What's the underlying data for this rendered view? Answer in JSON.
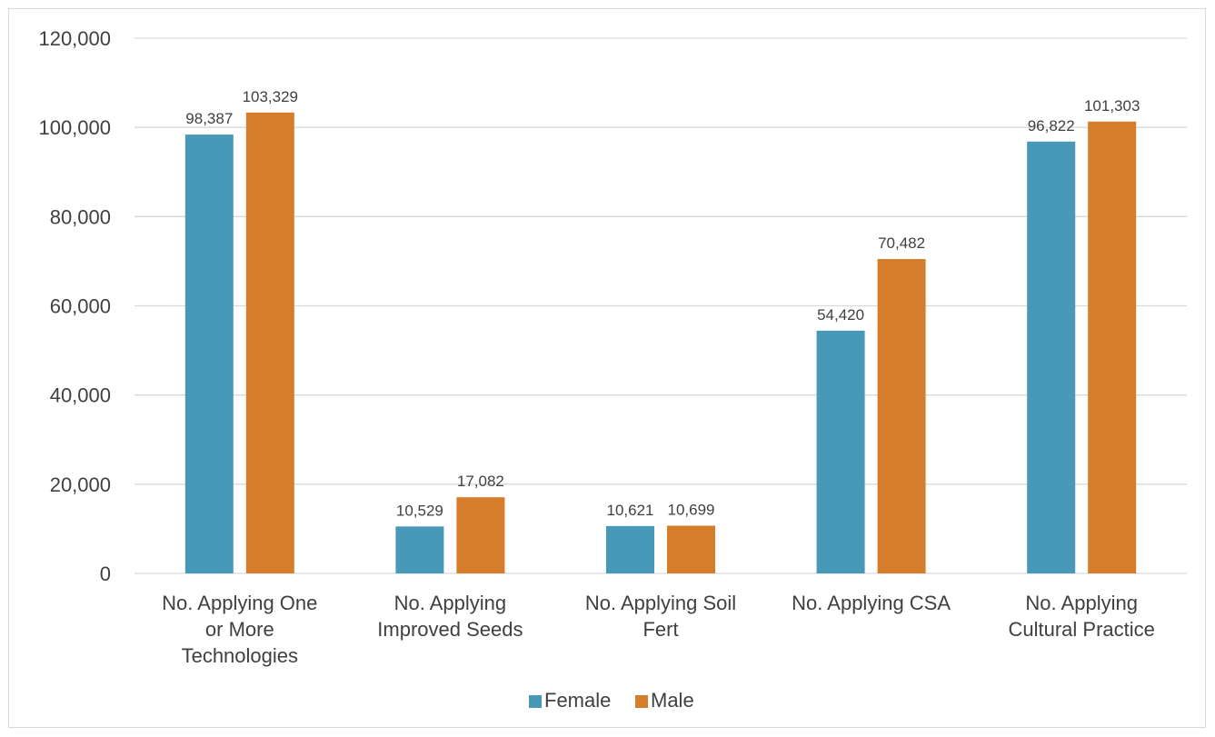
{
  "chart_data": {
    "type": "bar",
    "title": "",
    "xlabel": "",
    "ylabel": "",
    "ylim": [
      0,
      120000
    ],
    "yticks": [
      0,
      20000,
      40000,
      60000,
      80000,
      100000,
      120000
    ],
    "ytick_labels": [
      "0",
      "20,000",
      "40,000",
      "60,000",
      "80,000",
      "100,000",
      "120,000"
    ],
    "grid": true,
    "legend_position": "bottom",
    "categories": [
      [
        "No. Applying One",
        "or More",
        "Technologies"
      ],
      [
        "No. Applying",
        "Improved Seeds"
      ],
      [
        "No. Applying Soil",
        "Fert"
      ],
      [
        "No. Applying CSA"
      ],
      [
        "No. Applying",
        "Cultural Practice"
      ]
    ],
    "series": [
      {
        "name": "Female",
        "color": "#4799b7",
        "values": [
          98387,
          10529,
          10621,
          54420,
          96822
        ],
        "labels": [
          "98,387",
          "10,529",
          "10,621",
          "54,420",
          "96,822"
        ]
      },
      {
        "name": "Male",
        "color": "#d57d2a",
        "values": [
          103329,
          17082,
          10699,
          70482,
          101303
        ],
        "labels": [
          "103,329",
          "17,082",
          "10,699",
          "70,482",
          "101,303"
        ]
      }
    ]
  }
}
